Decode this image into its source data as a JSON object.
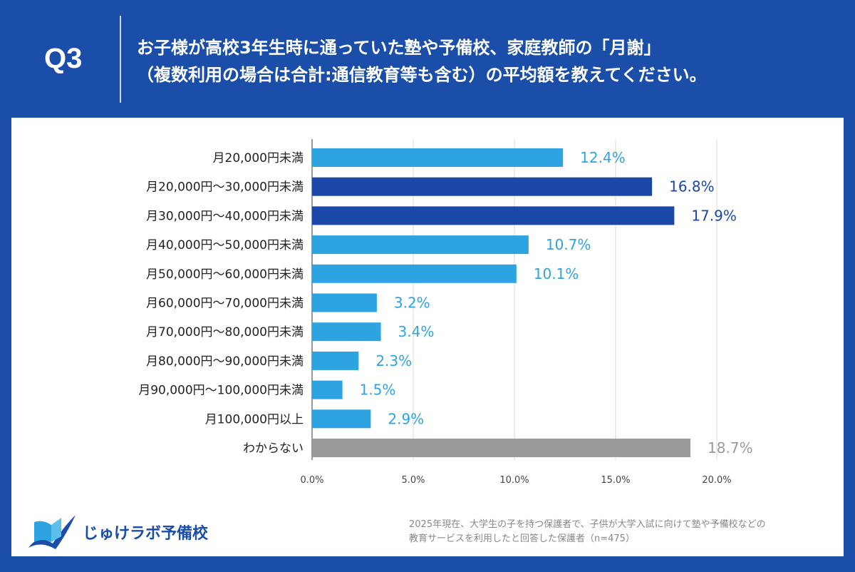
{
  "header": {
    "q_label": "Q3",
    "title_line1": "お子様が高校3年生時に通っていた塾や予備校、家庭教師の「月謝」",
    "title_line2": "（複数利用の場合は合計:通信教育等も含む）の平均額を教えてください。"
  },
  "chart_data": {
    "type": "bar",
    "orientation": "horizontal",
    "categories": [
      "月20,000円未満",
      "月20,000円～30,000円未満",
      "月30,000円～40,000円未満",
      "月40,000円～50,000円未満",
      "月50,000円～60,000円未満",
      "月60,000円～70,000円未満",
      "月70,000円～80,000円未満",
      "月80,000円～90,000円未満",
      "月90,000円～100,000円未満",
      "月100,000円以上",
      "わからない"
    ],
    "values": [
      12.4,
      16.8,
      17.9,
      10.7,
      10.1,
      3.2,
      3.4,
      2.3,
      1.5,
      2.9,
      18.7
    ],
    "data_labels": [
      "12.4%",
      "16.8%",
      "17.9%",
      "10.7%",
      "10.1%",
      "3.2%",
      "3.4%",
      "2.3%",
      "1.5%",
      "2.9%",
      "18.7%"
    ],
    "bar_colors": [
      "#2ea3e2",
      "#1a47a8",
      "#1a47a8",
      "#2ea3e2",
      "#2ea3e2",
      "#2ea3e2",
      "#2ea3e2",
      "#2ea3e2",
      "#2ea3e2",
      "#2ea3e2",
      "#9a9a9a"
    ],
    "xlim": [
      0,
      20
    ],
    "xticks": [
      0,
      5,
      10,
      15,
      20
    ],
    "xtick_labels": [
      "0.0%",
      "5.0%",
      "10.0%",
      "15.0%",
      "20.0%"
    ],
    "grid": "vertical",
    "xlabel": "",
    "ylabel": ""
  },
  "footer": {
    "logo_text": "じゅけラボ予備校",
    "note_line1": "2025年現在、大学生の子を持つ保護者で、子供が大学入試に向けて塾や予備校などの",
    "note_line2": "教育サービスを利用したと回答した保護者（n=475）"
  }
}
